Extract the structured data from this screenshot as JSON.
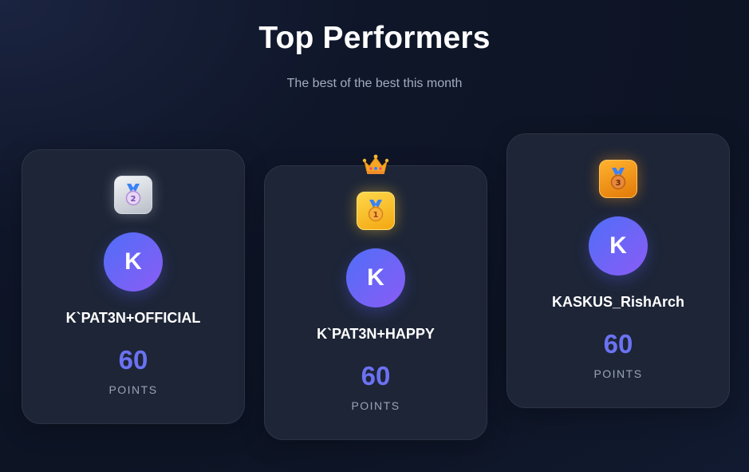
{
  "header": {
    "title": "Top Performers",
    "subtitle": "The best of the best this month"
  },
  "performers": [
    {
      "rank": 2,
      "rank_label": "2",
      "medal_icon": "silver-medal-icon",
      "avatar_initial": "K",
      "name": "K`PAT3N+OFFICIAL",
      "points": "60",
      "points_label": "POINTS"
    },
    {
      "rank": 1,
      "rank_label": "1",
      "medal_icon": "gold-medal-icon",
      "crown_icon": "crown-icon",
      "avatar_initial": "K",
      "name": "K`PAT3N+HAPPY",
      "points": "60",
      "points_label": "POINTS"
    },
    {
      "rank": 3,
      "rank_label": "3",
      "medal_icon": "bronze-medal-icon",
      "avatar_initial": "K",
      "name": "KASKUS_RishArch",
      "points": "60",
      "points_label": "POINTS"
    }
  ],
  "colors": {
    "accent_points": "#6b72f2",
    "avatar_gradient_start": "#4f6ef7",
    "avatar_gradient_end": "#8b5cf6",
    "card_bg": "#1d2537",
    "page_bg": "#0f1629"
  }
}
